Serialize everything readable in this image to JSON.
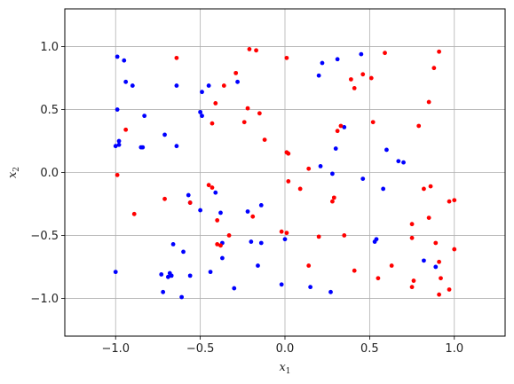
{
  "chart_data": {
    "type": "scatter",
    "title": "",
    "xlabel": "x",
    "xlabel_sub": "1",
    "ylabel": "x",
    "ylabel_sub": "2",
    "xlim": [
      -1.3,
      1.3
    ],
    "ylim": [
      -1.3,
      1.3
    ],
    "xticks": [
      -1.0,
      -0.5,
      0.0,
      0.5,
      1.0
    ],
    "yticks": [
      -1.0,
      -0.5,
      0.0,
      0.5,
      1.0
    ],
    "xtick_labels": [
      "−1.0",
      "−0.5",
      "0.0",
      "0.5",
      "1.0"
    ],
    "ytick_labels": [
      "−1.0",
      "−0.5",
      "0.0",
      "0.5",
      "1.0"
    ],
    "grid": true,
    "series": [
      {
        "color": "#0000ff",
        "points": [
          [
            -0.99,
            0.92
          ],
          [
            -0.95,
            0.89
          ],
          [
            -0.94,
            0.72
          ],
          [
            -0.9,
            0.69
          ],
          [
            -0.99,
            0.5
          ],
          [
            -0.98,
            0.25
          ],
          [
            -0.98,
            0.22
          ],
          [
            -1.0,
            0.21
          ],
          [
            -0.83,
            0.45
          ],
          [
            -0.85,
            0.2
          ],
          [
            -0.84,
            0.2
          ],
          [
            -0.71,
            0.3
          ],
          [
            -0.64,
            0.21
          ],
          [
            -0.64,
            0.69
          ],
          [
            -0.49,
            0.64
          ],
          [
            -0.45,
            0.69
          ],
          [
            -0.5,
            0.48
          ],
          [
            -0.49,
            0.45
          ],
          [
            -0.28,
            0.72
          ],
          [
            -0.57,
            -0.18
          ],
          [
            -0.56,
            -0.24
          ],
          [
            -0.5,
            -0.3
          ],
          [
            -0.41,
            -0.16
          ],
          [
            -0.38,
            -0.32
          ],
          [
            -0.22,
            -0.31
          ],
          [
            -0.14,
            -0.26
          ],
          [
            -0.37,
            -0.56
          ],
          [
            -0.37,
            -0.68
          ],
          [
            -0.2,
            -0.55
          ],
          [
            -0.14,
            -0.56
          ],
          [
            -0.16,
            -0.74
          ],
          [
            -0.3,
            -0.92
          ],
          [
            -0.44,
            -0.79
          ],
          [
            -0.6,
            -0.63
          ],
          [
            -0.66,
            -0.57
          ],
          [
            -0.73,
            -0.81
          ],
          [
            -0.68,
            -0.8
          ],
          [
            -0.67,
            -0.82
          ],
          [
            -0.69,
            -0.83
          ],
          [
            -0.56,
            -0.82
          ],
          [
            -0.72,
            -0.95
          ],
          [
            -0.61,
            -0.99
          ],
          [
            -1.0,
            -0.79
          ],
          [
            0.0,
            -0.53
          ],
          [
            -0.02,
            -0.89
          ],
          [
            0.15,
            -0.91
          ],
          [
            0.27,
            -0.95
          ],
          [
            0.2,
            0.77
          ],
          [
            0.22,
            0.87
          ],
          [
            0.31,
            0.9
          ],
          [
            0.45,
            0.94
          ],
          [
            0.35,
            0.36
          ],
          [
            0.3,
            0.19
          ],
          [
            0.21,
            0.05
          ],
          [
            0.28,
            -0.01
          ],
          [
            0.46,
            -0.05
          ],
          [
            0.6,
            0.18
          ],
          [
            0.67,
            0.09
          ],
          [
            0.7,
            0.08
          ],
          [
            0.58,
            -0.13
          ],
          [
            0.53,
            -0.55
          ],
          [
            0.54,
            -0.53
          ],
          [
            0.82,
            -0.7
          ],
          [
            0.89,
            -0.75
          ]
        ]
      },
      {
        "color": "#ff0000",
        "points": [
          [
            -0.64,
            0.91
          ],
          [
            -0.21,
            0.98
          ],
          [
            -0.17,
            0.97
          ],
          [
            -0.29,
            0.79
          ],
          [
            -0.36,
            0.69
          ],
          [
            -0.41,
            0.55
          ],
          [
            -0.22,
            0.51
          ],
          [
            -0.15,
            0.47
          ],
          [
            -0.43,
            0.39
          ],
          [
            -0.24,
            0.4
          ],
          [
            -0.12,
            0.26
          ],
          [
            -0.94,
            0.34
          ],
          [
            -0.99,
            -0.02
          ],
          [
            -0.89,
            -0.33
          ],
          [
            -0.71,
            -0.21
          ],
          [
            -0.56,
            -0.24
          ],
          [
            -0.45,
            -0.1
          ],
          [
            -0.43,
            -0.12
          ],
          [
            -0.4,
            -0.38
          ],
          [
            -0.33,
            -0.5
          ],
          [
            -0.4,
            -0.57
          ],
          [
            -0.38,
            -0.58
          ],
          [
            -0.19,
            -0.35
          ],
          [
            -0.02,
            -0.47
          ],
          [
            0.01,
            -0.48
          ],
          [
            0.2,
            -0.51
          ],
          [
            0.35,
            -0.5
          ],
          [
            0.14,
            -0.74
          ],
          [
            0.41,
            -0.78
          ],
          [
            0.01,
            0.16
          ],
          [
            0.02,
            0.15
          ],
          [
            0.02,
            -0.07
          ],
          [
            0.09,
            -0.13
          ],
          [
            0.14,
            0.03
          ],
          [
            0.28,
            -0.23
          ],
          [
            0.29,
            -0.2
          ],
          [
            0.31,
            0.33
          ],
          [
            0.33,
            0.37
          ],
          [
            0.39,
            0.74
          ],
          [
            0.41,
            0.67
          ],
          [
            0.46,
            0.78
          ],
          [
            0.51,
            0.75
          ],
          [
            0.01,
            0.91
          ],
          [
            0.59,
            0.95
          ],
          [
            0.52,
            0.4
          ],
          [
            0.79,
            0.37
          ],
          [
            0.85,
            0.56
          ],
          [
            0.88,
            0.83
          ],
          [
            0.91,
            0.96
          ],
          [
            0.82,
            -0.13
          ],
          [
            0.86,
            -0.11
          ],
          [
            0.97,
            -0.23
          ],
          [
            1.0,
            -0.22
          ],
          [
            0.85,
            -0.36
          ],
          [
            0.75,
            -0.41
          ],
          [
            0.75,
            -0.52
          ],
          [
            0.89,
            -0.56
          ],
          [
            1.0,
            -0.61
          ],
          [
            0.63,
            -0.74
          ],
          [
            0.55,
            -0.84
          ],
          [
            0.76,
            -0.86
          ],
          [
            0.75,
            -0.91
          ],
          [
            0.91,
            -0.71
          ],
          [
            0.92,
            -0.84
          ],
          [
            0.97,
            -0.93
          ],
          [
            0.91,
            -0.97
          ]
        ]
      }
    ]
  }
}
